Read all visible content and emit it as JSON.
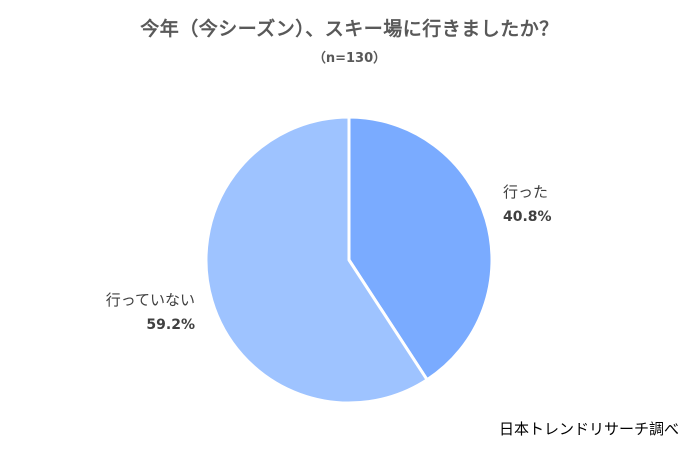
{
  "chart_data": {
    "type": "pie",
    "title": "今年（今シーズン）、スキー場に行きましたか？",
    "subtitle": "（n=130）",
    "slices": [
      {
        "label": "行った",
        "value": 40.8,
        "value_label": "40.8%",
        "color": "#7aabff"
      },
      {
        "label": "行っていない",
        "value": 59.2,
        "value_label": "59.2%",
        "color": "#9ec3ff"
      }
    ],
    "start_angle_deg": 0,
    "direction": "clockwise"
  },
  "source": "日本トレンドリサーチ調べ"
}
